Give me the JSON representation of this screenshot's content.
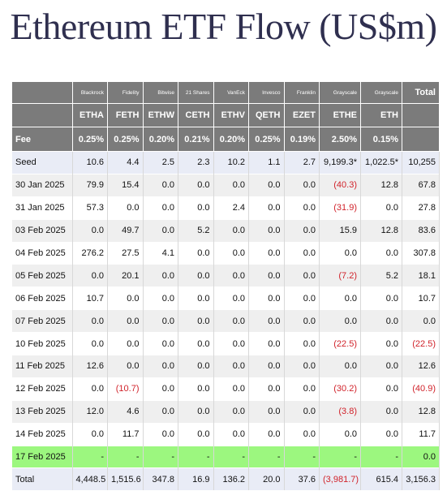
{
  "title": "Ethereum ETF Flow (US$m)",
  "colors": {
    "header_bg": "#7b7b7b",
    "negative": "#d1232b",
    "highlight_row": "#9cf77f",
    "seed_total_bg": "#e9ecf6"
  },
  "table": {
    "issuers": [
      "Blackrock",
      "Fidelity",
      "Bitwise",
      "21 Shares",
      "VanEck",
      "Invesco",
      "Franklin",
      "Grayscale",
      "Grayscale"
    ],
    "total_header": "Total",
    "tickers": [
      "ETHA",
      "FETH",
      "ETHW",
      "CETH",
      "ETHV",
      "QETH",
      "EZET",
      "ETHE",
      "ETH"
    ],
    "fee_label": "Fee",
    "fees": [
      "0.25%",
      "0.25%",
      "0.20%",
      "0.21%",
      "0.20%",
      "0.25%",
      "0.19%",
      "2.50%",
      "0.15%"
    ],
    "rows": [
      {
        "label": "Seed",
        "values": [
          "10.6",
          "4.4",
          "2.5",
          "2.3",
          "10.2",
          "1.1",
          "2.7",
          "9,199.3*",
          "1,022.5*"
        ],
        "total": "10,255"
      },
      {
        "label": "30 Jan 2025",
        "values": [
          "79.9",
          "15.4",
          "0.0",
          "0.0",
          "0.0",
          "0.0",
          "0.0",
          "(40.3)",
          "12.8"
        ],
        "total": "67.8"
      },
      {
        "label": "31 Jan 2025",
        "values": [
          "57.3",
          "0.0",
          "0.0",
          "0.0",
          "2.4",
          "0.0",
          "0.0",
          "(31.9)",
          "0.0"
        ],
        "total": "27.8"
      },
      {
        "label": "03 Feb 2025",
        "values": [
          "0.0",
          "49.7",
          "0.0",
          "5.2",
          "0.0",
          "0.0",
          "0.0",
          "15.9",
          "12.8"
        ],
        "total": "83.6"
      },
      {
        "label": "04 Feb 2025",
        "values": [
          "276.2",
          "27.5",
          "4.1",
          "0.0",
          "0.0",
          "0.0",
          "0.0",
          "0.0",
          "0.0"
        ],
        "total": "307.8"
      },
      {
        "label": "05 Feb 2025",
        "values": [
          "0.0",
          "20.1",
          "0.0",
          "0.0",
          "0.0",
          "0.0",
          "0.0",
          "(7.2)",
          "5.2"
        ],
        "total": "18.1"
      },
      {
        "label": "06 Feb 2025",
        "values": [
          "10.7",
          "0.0",
          "0.0",
          "0.0",
          "0.0",
          "0.0",
          "0.0",
          "0.0",
          "0.0"
        ],
        "total": "10.7"
      },
      {
        "label": "07 Feb 2025",
        "values": [
          "0.0",
          "0.0",
          "0.0",
          "0.0",
          "0.0",
          "0.0",
          "0.0",
          "0.0",
          "0.0"
        ],
        "total": "0.0"
      },
      {
        "label": "10 Feb 2025",
        "values": [
          "0.0",
          "0.0",
          "0.0",
          "0.0",
          "0.0",
          "0.0",
          "0.0",
          "(22.5)",
          "0.0"
        ],
        "total": "(22.5)"
      },
      {
        "label": "11 Feb 2025",
        "values": [
          "12.6",
          "0.0",
          "0.0",
          "0.0",
          "0.0",
          "0.0",
          "0.0",
          "0.0",
          "0.0"
        ],
        "total": "12.6"
      },
      {
        "label": "12 Feb 2025",
        "values": [
          "0.0",
          "(10.7)",
          "0.0",
          "0.0",
          "0.0",
          "0.0",
          "0.0",
          "(30.2)",
          "0.0"
        ],
        "total": "(40.9)"
      },
      {
        "label": "13 Feb 2025",
        "values": [
          "12.0",
          "4.6",
          "0.0",
          "0.0",
          "0.0",
          "0.0",
          "0.0",
          "(3.8)",
          "0.0"
        ],
        "total": "12.8"
      },
      {
        "label": "14 Feb 2025",
        "values": [
          "0.0",
          "11.7",
          "0.0",
          "0.0",
          "0.0",
          "0.0",
          "0.0",
          "0.0",
          "0.0"
        ],
        "total": "11.7"
      },
      {
        "label": "17 Feb 2025",
        "values": [
          "-",
          "-",
          "-",
          "-",
          "-",
          "-",
          "-",
          "-",
          "-"
        ],
        "total": "0.0"
      },
      {
        "label": "Total",
        "values": [
          "4,448.5",
          "1,515.6",
          "347.8",
          "16.9",
          "136.2",
          "20.0",
          "37.6",
          "(3,981.7)",
          "615.4"
        ],
        "total": "3,156.3"
      }
    ]
  }
}
